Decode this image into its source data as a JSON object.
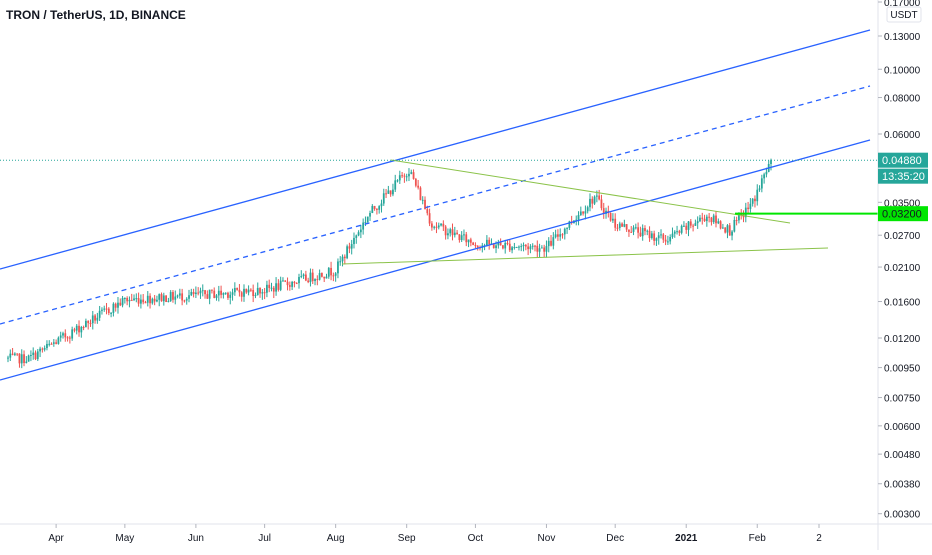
{
  "title": "TRON / TetherUS, 1D, BINANCE",
  "currency": "USDT",
  "colors": {
    "up": "#26a69a",
    "down": "#ef5350",
    "channel": "#2962ff",
    "triangle": "#8bc34a",
    "support": "#00e600",
    "price_badge": "#26a69a"
  },
  "chart_data": {
    "type": "candlestick",
    "y_scale": "log",
    "ylim": [
      0.0029,
      0.17
    ],
    "x_ticks": [
      "Apr",
      "May",
      "Jun",
      "Jul",
      "Aug",
      "Sep",
      "Oct",
      "Nov",
      "Dec",
      "2021",
      "Feb",
      "2"
    ],
    "y_ticks": [
      "0.17000",
      "0.13000",
      "0.10000",
      "0.08000",
      "0.06000",
      "0.04880",
      "0.03500",
      "0.03200",
      "0.02700",
      "0.02100",
      "0.01600",
      "0.01200",
      "0.00950",
      "0.00750",
      "0.00600",
      "0.00480",
      "0.00380",
      "0.00300"
    ],
    "last_price": "0.04880",
    "countdown": "13:35:20",
    "support_level": "0.03200",
    "key_prices": [
      {
        "date": "2020-03-20",
        "price": 0.0102
      },
      {
        "date": "2020-05-01",
        "price": 0.0162
      },
      {
        "date": "2020-06-01",
        "price": 0.0168
      },
      {
        "date": "2020-07-01",
        "price": 0.0175
      },
      {
        "date": "2020-08-01",
        "price": 0.0205
      },
      {
        "date": "2020-08-15",
        "price": 0.0315
      },
      {
        "date": "2020-09-02",
        "price": 0.0455
      },
      {
        "date": "2020-09-12",
        "price": 0.0295
      },
      {
        "date": "2020-10-01",
        "price": 0.0252
      },
      {
        "date": "2020-11-01",
        "price": 0.0245
      },
      {
        "date": "2020-11-22",
        "price": 0.0365
      },
      {
        "date": "2020-12-01",
        "price": 0.0295
      },
      {
        "date": "2020-12-23",
        "price": 0.026
      },
      {
        "date": "2021-01-10",
        "price": 0.0315
      },
      {
        "date": "2021-01-20",
        "price": 0.028
      },
      {
        "date": "2021-01-30",
        "price": 0.035
      },
      {
        "date": "2021-02-07",
        "price": 0.0488
      }
    ]
  }
}
